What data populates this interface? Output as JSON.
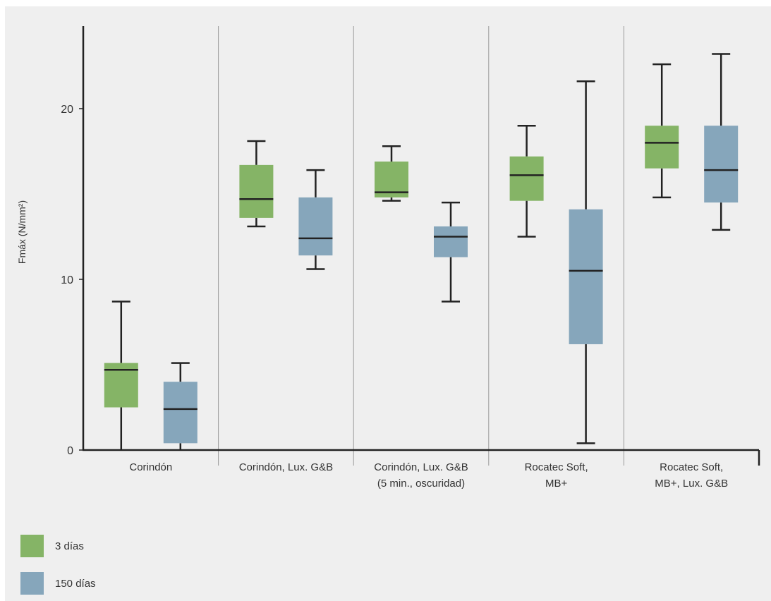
{
  "chart_data": {
    "type": "box",
    "ylabel": "Fmáx (N/mm²)",
    "ylim": [
      0,
      25
    ],
    "yticks": [
      0,
      10,
      20
    ],
    "grid": false,
    "legend_position": "bottom-left",
    "categories": [
      [
        "Corindón"
      ],
      [
        "Corindón, Lux. G&B"
      ],
      [
        "Corindón, Lux. G&B",
        "(5 min., oscuridad)"
      ],
      [
        "Rocatec Soft,",
        "MB+"
      ],
      [
        "Rocatec Soft,",
        "MB+, Lux. G&B"
      ]
    ],
    "series": [
      {
        "name": "3 días",
        "color": "#85b466",
        "boxes": [
          {
            "min": 0.0,
            "q1": 2.5,
            "median": 4.7,
            "q3": 5.1,
            "max": 8.7
          },
          {
            "min": 13.1,
            "q1": 13.6,
            "median": 14.7,
            "q3": 16.7,
            "max": 18.1
          },
          {
            "min": 14.6,
            "q1": 14.8,
            "median": 15.1,
            "q3": 16.9,
            "max": 17.8
          },
          {
            "min": 12.5,
            "q1": 14.6,
            "median": 16.1,
            "q3": 17.2,
            "max": 19.0
          },
          {
            "min": 14.8,
            "q1": 16.5,
            "median": 18.0,
            "q3": 19.0,
            "max": 22.6
          }
        ]
      },
      {
        "name": "150 días",
        "color": "#86a6bb",
        "boxes": [
          {
            "min": 0.0,
            "q1": 0.4,
            "median": 2.4,
            "q3": 4.0,
            "max": 5.1
          },
          {
            "min": 10.6,
            "q1": 11.4,
            "median": 12.4,
            "q3": 14.8,
            "max": 16.4
          },
          {
            "min": 8.7,
            "q1": 11.3,
            "median": 12.5,
            "q3": 13.1,
            "max": 14.5
          },
          {
            "min": 0.4,
            "q1": 6.2,
            "median": 10.5,
            "q3": 14.1,
            "max": 21.6
          },
          {
            "min": 12.9,
            "q1": 14.5,
            "median": 16.4,
            "q3": 19.0,
            "max": 23.2
          }
        ]
      }
    ]
  }
}
